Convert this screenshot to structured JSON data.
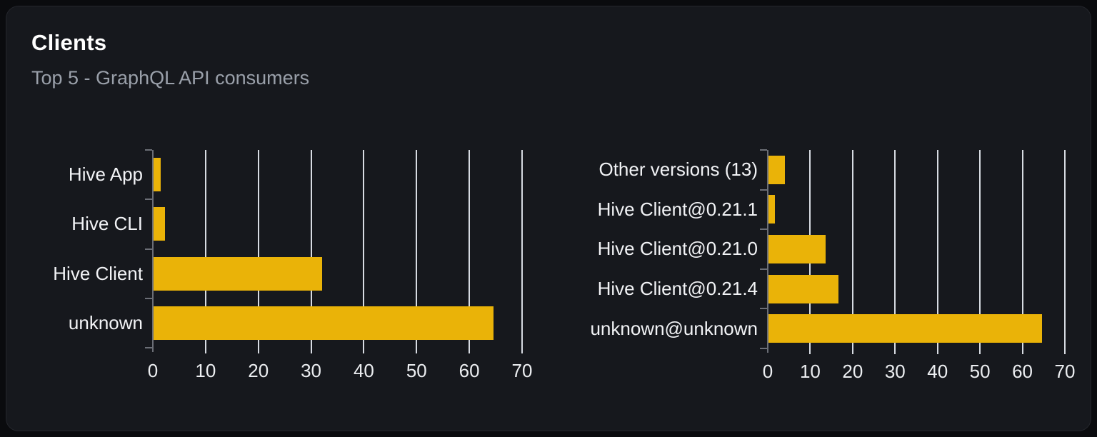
{
  "header": {
    "title": "Clients",
    "subtitle": "Top 5 - GraphQL API consumers"
  },
  "colors": {
    "page_bg": "#0a0b0e",
    "card_bg": "#16181d",
    "card_border": "#24262c",
    "title": "#ffffff",
    "subtitle": "#9aa0aa",
    "bar": "#eab308",
    "grid": "#d7dbe2",
    "axis": "#6b6e76",
    "category_label": "#f2f3f6",
    "tick_label": "#eceef1"
  },
  "chart_data": [
    {
      "type": "bar",
      "name": "clients-top5-chart",
      "orientation": "horizontal",
      "categories": [
        "Hive App",
        "Hive CLI",
        "Hive Client",
        "unknown"
      ],
      "values": [
        1.3,
        2.2,
        32,
        64.5
      ],
      "xlim": [
        0,
        70
      ],
      "xticks": [
        0,
        10,
        20,
        30,
        40,
        50,
        60,
        70
      ],
      "grid": true,
      "legend": false,
      "title": "",
      "xlabel": "",
      "ylabel": ""
    },
    {
      "type": "bar",
      "name": "client-versions-chart",
      "orientation": "horizontal",
      "categories": [
        "Other versions (13)",
        "Hive Client@0.21.1",
        "Hive Client@0.21.0",
        "Hive Client@0.21.4",
        "unknown@unknown"
      ],
      "values": [
        3.9,
        1.5,
        13.5,
        16.5,
        64.4
      ],
      "xlim": [
        0,
        70
      ],
      "xticks": [
        0,
        10,
        20,
        30,
        40,
        50,
        60,
        70
      ],
      "grid": true,
      "legend": false,
      "title": "",
      "xlabel": "",
      "ylabel": ""
    }
  ]
}
